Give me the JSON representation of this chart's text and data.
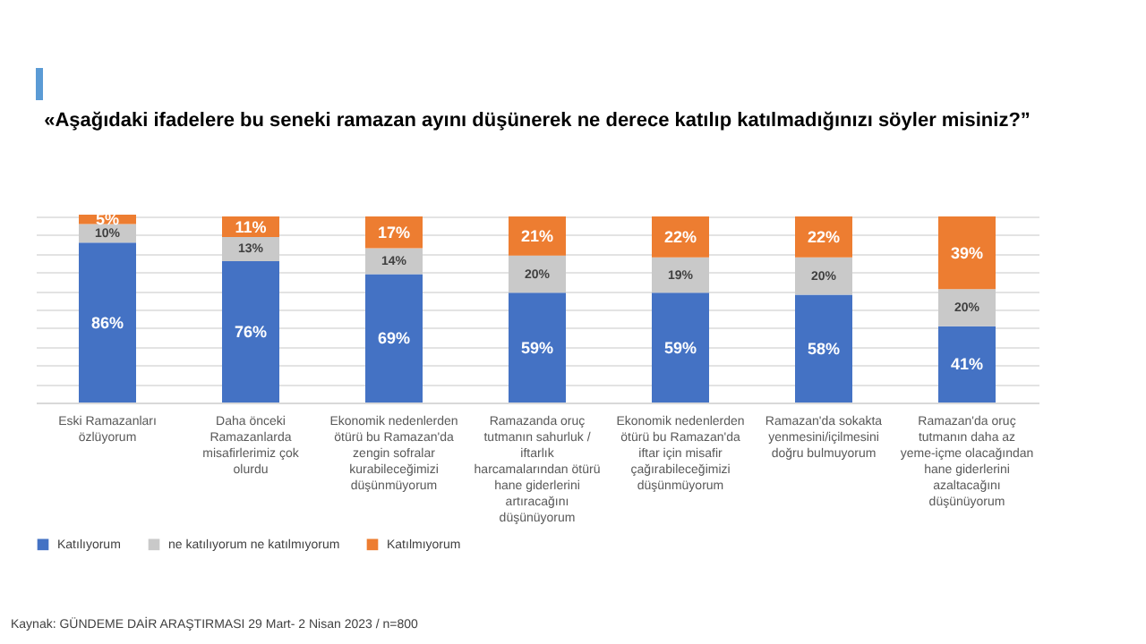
{
  "chart_data": {
    "type": "bar",
    "stacked": true,
    "title": "«Aşağıdaki ifadelere bu seneki ramazan ayını düşünerek ne derece katılıp katılmadığınızı söyler misiniz?”",
    "categories": [
      "Eski Ramazanları özlüyorum",
      "Daha önceki Ramazanlarda misafirlerimiz çok olurdu",
      "Ekonomik nedenlerden ötürü bu Ramazan'da zengin sofralar kurabileceğimizi düşünmüyorum",
      "Ramazanda oruç tutmanın sahurluk / iftarlık harcamalarından ötürü hane giderlerini artıracağını düşünüyorum",
      "Ekonomik nedenlerden ötürü bu Ramazan'da iftar için misafir çağırabileceğimizi düşünmüyorum",
      "Ramazan'da sokakta yenmesini/içilmesini doğru bulmuyorum",
      "Ramazan'da oruç tutmanın daha az yeme-içme olacağından hane giderlerini azaltacağını düşünüyorum"
    ],
    "series": [
      {
        "name": "Katılıyorum",
        "color": "#4472c4",
        "values": [
          86,
          76,
          69,
          59,
          59,
          58,
          41
        ],
        "value_labels": [
          "86%",
          "76%",
          "69%",
          "59%",
          "59%",
          "58%",
          "41%"
        ]
      },
      {
        "name": "ne katılıyorum ne katılmıyorum",
        "color": "#c9c9c9",
        "values": [
          10,
          13,
          14,
          20,
          19,
          20,
          20
        ],
        "value_labels": [
          "10%",
          "13%",
          "14%",
          "20%",
          "19%",
          "20%",
          "20%"
        ]
      },
      {
        "name": "Katılmıyorum",
        "color": "#ed7d31",
        "values": [
          5,
          11,
          17,
          21,
          22,
          22,
          39
        ],
        "value_labels": [
          "5%",
          "11%",
          "17%",
          "21%",
          "22%",
          "22%",
          "39%"
        ]
      }
    ],
    "ylim": [
      0,
      101
    ],
    "tick_labels": "x",
    "grid": "y",
    "legend": "bottom",
    "annotations": [
      "Kaynak: GÜNDEME DAİR ARAŞTIRMASI   29 Mart- 2 Nisan 2023 / n=800"
    ]
  }
}
